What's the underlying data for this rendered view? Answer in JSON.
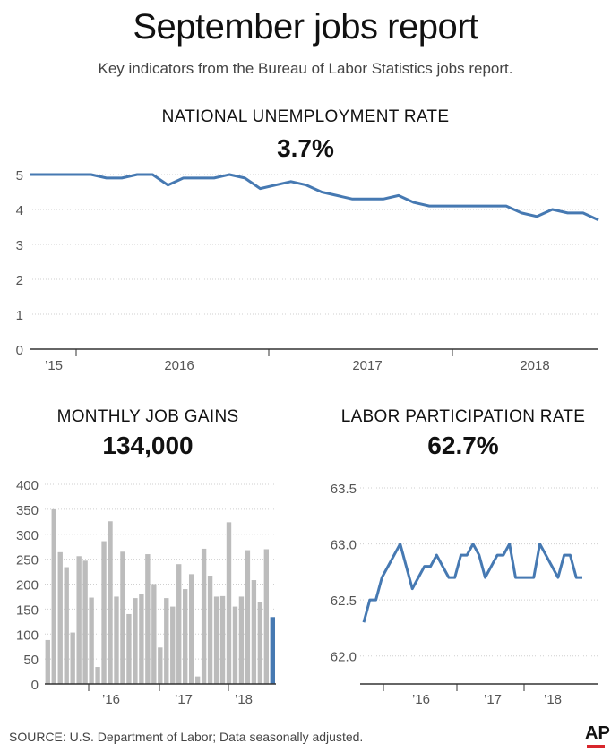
{
  "header": {
    "title": "September jobs report",
    "subtitle": "Key indicators from the Bureau of Labor Statistics jobs report."
  },
  "source": "SOURCE: U.S. Department of Labor; Data seasonally adjusted.",
  "logo": "AP",
  "colors": {
    "line": "#4679b2",
    "bar": "#bcbcbc",
    "highlight": "#4679b2",
    "grid": "#cfcfcf",
    "axis": "#333333"
  },
  "chart_data": [
    {
      "type": "line",
      "title": "NATIONAL UNEMPLOYMENT RATE",
      "headline_value": "3.7%",
      "ylim": [
        0,
        5
      ],
      "yticks": [
        "0",
        "1",
        "2",
        "3",
        "4",
        "5"
      ],
      "xtick_labels": [
        "’15",
        "2016",
        "2017",
        "2018"
      ],
      "series": [
        {
          "name": "Unemployment rate",
          "values": [
            5.0,
            5.0,
            5.0,
            5.0,
            5.0,
            4.9,
            4.9,
            5.0,
            5.0,
            4.7,
            4.9,
            4.9,
            4.9,
            5.0,
            4.9,
            4.6,
            4.7,
            4.8,
            4.7,
            4.5,
            4.4,
            4.3,
            4.3,
            4.3,
            4.4,
            4.2,
            4.1,
            4.1,
            4.1,
            4.1,
            4.1,
            4.1,
            3.9,
            3.8,
            4.0,
            3.9,
            3.9,
            3.7
          ]
        }
      ]
    },
    {
      "type": "bar",
      "title": "MONTHLY JOB GAINS",
      "headline_value": "134,000",
      "ylim": [
        0,
        400
      ],
      "yticks": [
        "0",
        "50",
        "100",
        "150",
        "200",
        "250",
        "300",
        "350",
        "400"
      ],
      "xtick_labels": [
        "’16",
        "’17",
        "’18"
      ],
      "series": [
        {
          "name": "Monthly job gains (thousands)",
          "values": [
            88,
            350,
            264,
            234,
            103,
            256,
            247,
            173,
            34,
            286,
            326,
            175,
            265,
            140,
            172,
            180,
            260,
            200,
            73,
            172,
            155,
            240,
            190,
            220,
            15,
            271,
            217,
            175,
            176,
            324,
            155,
            175,
            268,
            208,
            165,
            270,
            134
          ]
        }
      ]
    },
    {
      "type": "line",
      "title": "LABOR PARTICIPATION RATE",
      "headline_value": "62.7%",
      "ylim": [
        61.75,
        63.5
      ],
      "yticks": [
        "62.0",
        "62.5",
        "63.0",
        "63.5"
      ],
      "xtick_labels": [
        "’16",
        "’17",
        "’18"
      ],
      "series": [
        {
          "name": "Participation rate",
          "values": [
            62.3,
            62.5,
            62.5,
            62.7,
            62.8,
            62.9,
            63.0,
            62.8,
            62.6,
            62.7,
            62.8,
            62.8,
            62.9,
            62.8,
            62.7,
            62.7,
            62.9,
            62.9,
            63.0,
            62.9,
            62.7,
            62.8,
            62.9,
            62.9,
            63.0,
            62.7,
            62.7,
            62.7,
            62.7,
            63.0,
            62.9,
            62.8,
            62.7,
            62.9,
            62.9,
            62.7,
            62.7
          ]
        }
      ]
    }
  ]
}
